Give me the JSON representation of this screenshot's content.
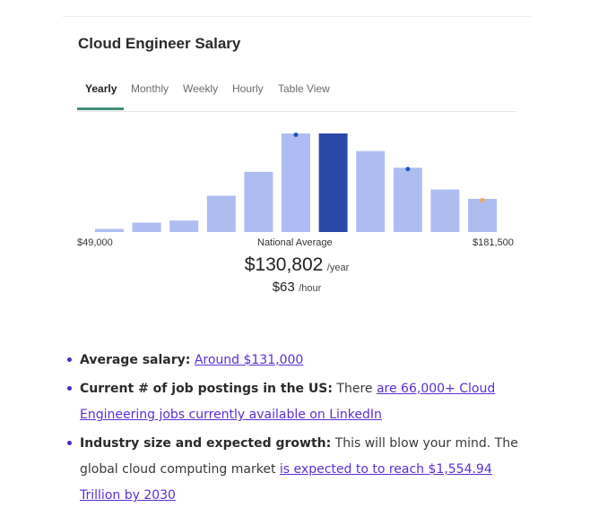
{
  "title": "Cloud Engineer Salary",
  "tabs": [
    {
      "label": "Yearly",
      "active": true
    },
    {
      "label": "Monthly",
      "active": false
    },
    {
      "label": "Weekly",
      "active": false
    },
    {
      "label": "Hourly",
      "active": false
    },
    {
      "label": "Table View",
      "active": false
    }
  ],
  "chart_data": {
    "type": "bar",
    "x_min_label": "$49,000",
    "x_mid_label": "National Average",
    "x_max_label": "$181,500",
    "values": [
      3,
      9,
      11,
      35,
      58,
      95,
      95,
      78,
      62,
      41,
      32
    ],
    "highlight_index": 6,
    "markers": [
      {
        "bar": 5,
        "color": "#1a57b8"
      },
      {
        "bar": 8,
        "color": "#1a57b8"
      },
      {
        "bar": 10,
        "color": "#f3a64a"
      }
    ],
    "colors": {
      "bar": "#aebdf1",
      "highlight": "#2a48a8"
    }
  },
  "salary": {
    "yearly": "$130,802",
    "yearly_unit": "/year",
    "hourly": "$63",
    "hourly_unit": "/hour"
  },
  "bullets": [
    {
      "label": "Average salary:",
      "text": "",
      "link": "Around $131,000"
    },
    {
      "label": "Current # of job postings in the US:",
      "text": " There ",
      "link": "are 66,000+ Cloud Engineering jobs currently available on LinkedIn"
    },
    {
      "label": "Industry size and expected growth:",
      "text": " This will blow your mind. The global cloud computing market ",
      "link": "is expected to to reach $1,554.94 Trillion by 2030"
    }
  ]
}
